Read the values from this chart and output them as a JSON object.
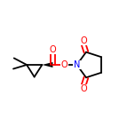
{
  "background": "#ffffff",
  "bond_color": "#000000",
  "oxygen_color": "#ff0000",
  "nitrogen_color": "#0000ff",
  "lw": 1.3,
  "figsize": [
    1.52,
    1.52
  ],
  "dpi": 100,
  "xlim": [
    0.0,
    1.0
  ],
  "ylim": [
    0.28,
    0.82
  ]
}
